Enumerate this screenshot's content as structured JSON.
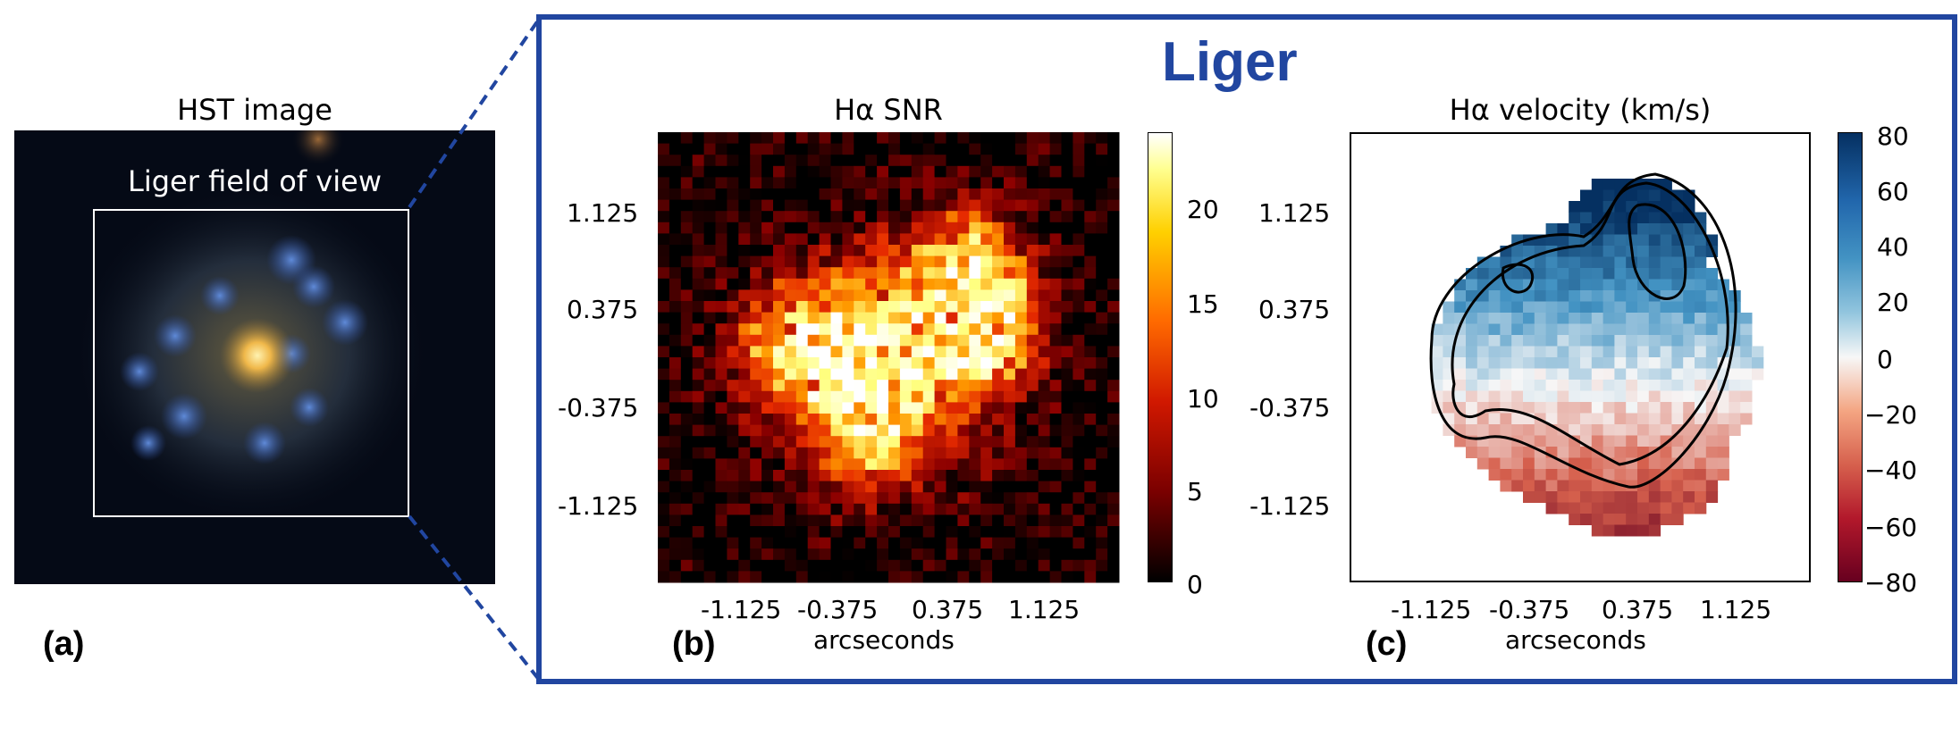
{
  "panel_a": {
    "title": "HST image",
    "fov_label": "Liger field of view",
    "label": "(a)"
  },
  "liger_title": "Liger",
  "panel_b": {
    "title": "Hα SNR",
    "xlabel": "arcseconds",
    "label": "(b)",
    "ticks": [
      "-1.125",
      "-0.375",
      "0.375",
      "1.125"
    ],
    "colorbar_ticks": [
      "0",
      "5",
      "10",
      "15",
      "20"
    ]
  },
  "panel_c": {
    "title": "Hα velocity (km/s)",
    "xlabel": "arcseconds",
    "label": "(c)",
    "ticks": [
      "-1.125",
      "-0.375",
      "0.375",
      "1.125"
    ],
    "colorbar_ticks": [
      "80",
      "60",
      "40",
      "20",
      "0",
      "−20",
      "−40",
      "−60",
      "−80"
    ]
  },
  "colors": {
    "frame": "#2146a0",
    "hot_map": [
      "#000000",
      "#8b0000",
      "#e62a00",
      "#ff9a00",
      "#ffff80",
      "#ffffff"
    ],
    "diverging_map": [
      "#67001f",
      "#d6604d",
      "#f7f7f7",
      "#4393c3",
      "#053061"
    ]
  },
  "chart_data": [
    {
      "type": "heatmap",
      "title": "Hα SNR",
      "xlabel": "arcseconds",
      "xticks": [
        -1.125,
        -0.375,
        0.375,
        1.125
      ],
      "yticks": [
        1.125,
        0.375,
        -0.375,
        -1.125
      ],
      "colorbar_range": [
        0,
        23
      ],
      "colorbar_ticks": [
        0,
        5,
        10,
        15,
        20
      ]
    },
    {
      "type": "heatmap",
      "title": "Hα velocity (km/s)",
      "xlabel": "arcseconds",
      "xticks": [
        -1.125,
        -0.375,
        0.375,
        1.125
      ],
      "yticks": [
        1.125,
        0.375,
        -0.375,
        -1.125
      ],
      "colorbar_range": [
        -80,
        80
      ],
      "colorbar_ticks": [
        80,
        60,
        40,
        20,
        0,
        -20,
        -40,
        -60,
        -80
      ]
    }
  ]
}
